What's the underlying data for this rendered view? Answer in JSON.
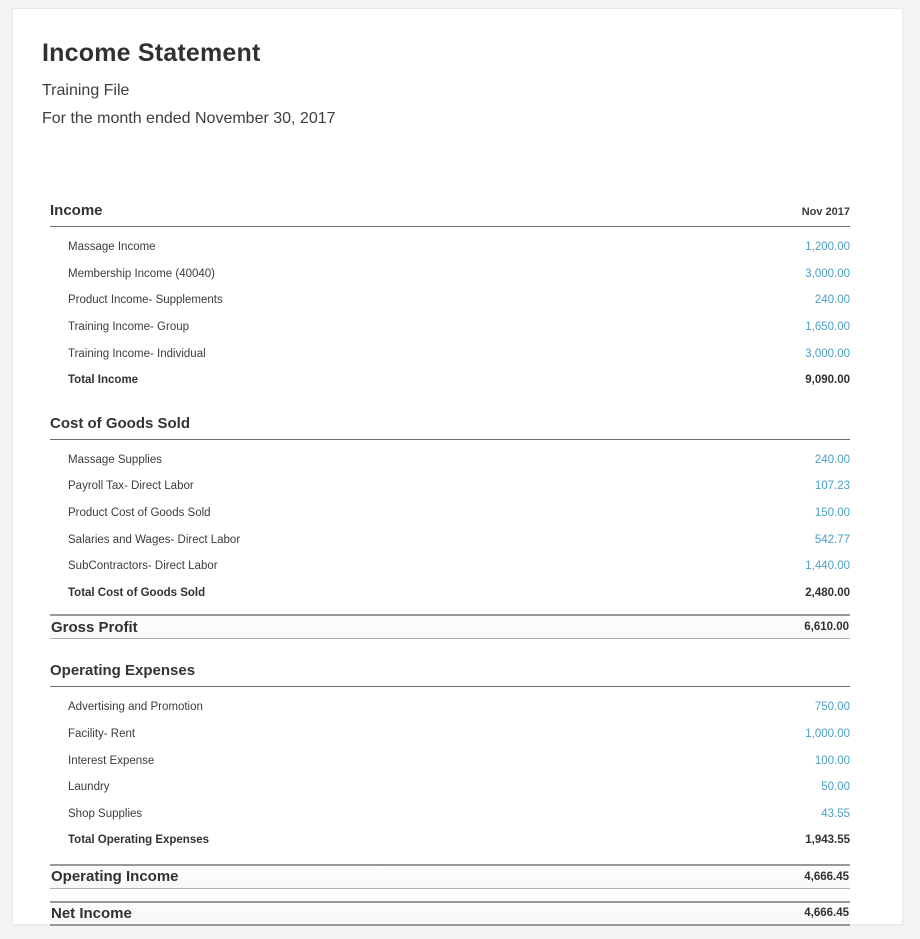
{
  "header": {
    "title": "Income Statement",
    "subtitle": "Training File",
    "period": "For the month ended November 30, 2017"
  },
  "colors": {
    "amount_link_blue": "#4a9fc4",
    "text_dark": "#2f3133",
    "card_background": "#ffffff",
    "page_background": "#f3f3f4"
  },
  "report": {
    "column_header": "Nov 2017",
    "sections": [
      {
        "name": "Income",
        "rows": [
          {
            "label": "Massage Income",
            "amount": "1,200.00"
          },
          {
            "label": "Membership Income (40040)",
            "amount": "3,000.00"
          },
          {
            "label": "Product Income- Supplements",
            "amount": "240.00"
          },
          {
            "label": "Training Income- Group",
            "amount": "1,650.00"
          },
          {
            "label": "Training Income- Individual",
            "amount": "3,000.00"
          }
        ],
        "total": {
          "label": "Total Income",
          "amount": "9,090.00"
        }
      },
      {
        "name": "Cost of Goods Sold",
        "rows": [
          {
            "label": "Massage Supplies",
            "amount": "240.00"
          },
          {
            "label": "Payroll Tax- Direct Labor",
            "amount": "107.23"
          },
          {
            "label": "Product Cost of Goods Sold",
            "amount": "150.00"
          },
          {
            "label": "Salaries and Wages- Direct Labor",
            "amount": "542.77"
          },
          {
            "label": "SubContractors- Direct Labor",
            "amount": "1,440.00"
          }
        ],
        "total": {
          "label": "Total Cost of Goods Sold",
          "amount": "2,480.00"
        }
      },
      {
        "name": "Operating Expenses",
        "rows": [
          {
            "label": "Advertising and Promotion",
            "amount": "750.00"
          },
          {
            "label": "Facility- Rent",
            "amount": "1,000.00"
          },
          {
            "label": "Interest Expense",
            "amount": "100.00"
          },
          {
            "label": "Laundry",
            "amount": "50.00"
          },
          {
            "label": "Shop Supplies",
            "amount": "43.55"
          }
        ],
        "total": {
          "label": "Total Operating Expenses",
          "amount": "1,943.55"
        }
      }
    ],
    "bands": [
      {
        "label": "Gross Profit",
        "amount": "6,610.00"
      },
      {
        "label": "Operating Income",
        "amount": "4,666.45"
      },
      {
        "label": "Net Income",
        "amount": "4,666.45"
      }
    ]
  }
}
